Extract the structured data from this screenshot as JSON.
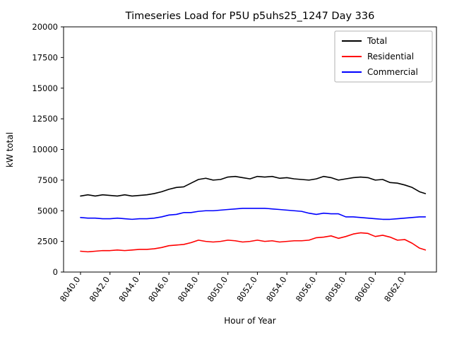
{
  "chart_data": {
    "type": "line",
    "title": "Timeseries Load for P5U p5uhs25_1247  Day 336",
    "xlabel": "Hour of Year",
    "ylabel": "kW total",
    "xlim": [
      8038.85,
      8064.15
    ],
    "ylim": [
      0,
      20000
    ],
    "yticks": [
      0,
      2500,
      5000,
      7500,
      10000,
      12500,
      15000,
      17500,
      20000
    ],
    "ytick_labels": [
      "0",
      "2500",
      "5000",
      "7500",
      "10000",
      "12500",
      "15000",
      "17500",
      "20000"
    ],
    "xticks": [
      8040,
      8042,
      8044,
      8046,
      8048,
      8050,
      8052,
      8054,
      8056,
      8058,
      8060,
      8062
    ],
    "xtick_labels": [
      "8040.0",
      "8042.0",
      "8044.0",
      "8046.0",
      "8048.0",
      "8050.0",
      "8052.0",
      "8054.0",
      "8056.0",
      "8058.0",
      "8060.0",
      "8062.0"
    ],
    "x": [
      8040,
      8040.5,
      8041,
      8041.5,
      8042,
      8042.5,
      8043,
      8043.5,
      8044,
      8044.5,
      8045,
      8045.5,
      8046,
      8046.5,
      8047,
      8047.5,
      8048,
      8048.5,
      8049,
      8049.5,
      8050,
      8050.5,
      8051,
      8051.5,
      8052,
      8052.5,
      8053,
      8053.5,
      8054,
      8054.5,
      8055,
      8055.5,
      8056,
      8056.5,
      8057,
      8057.5,
      8058,
      8058.5,
      8059,
      8059.5,
      8060,
      8060.5,
      8061,
      8061.5,
      8062,
      8062.5,
      8063,
      8063.4
    ],
    "series": [
      {
        "name": "Total",
        "color": "#000000",
        "values": [
          6200,
          6300,
          6200,
          6300,
          6250,
          6200,
          6300,
          6200,
          6250,
          6300,
          6400,
          6550,
          6750,
          6900,
          6950,
          7250,
          7550,
          7650,
          7500,
          7550,
          7750,
          7800,
          7700,
          7600,
          7800,
          7750,
          7800,
          7650,
          7700,
          7600,
          7550,
          7500,
          7600,
          7800,
          7700,
          7500,
          7600,
          7700,
          7750,
          7700,
          7500,
          7550,
          7300,
          7250,
          7100,
          6900,
          6550,
          6400
        ]
      },
      {
        "name": "Residential",
        "color": "#ff0000",
        "values": [
          1700,
          1650,
          1700,
          1750,
          1750,
          1800,
          1750,
          1800,
          1850,
          1850,
          1900,
          2000,
          2150,
          2200,
          2250,
          2400,
          2600,
          2500,
          2450,
          2500,
          2600,
          2550,
          2450,
          2500,
          2600,
          2500,
          2550,
          2450,
          2500,
          2550,
          2550,
          2600,
          2800,
          2850,
          2950,
          2750,
          2900,
          3100,
          3200,
          3150,
          2900,
          3000,
          2850,
          2600,
          2650,
          2350,
          1950,
          1800
        ]
      },
      {
        "name": "Commercial",
        "color": "#0000ff",
        "values": [
          4450,
          4400,
          4400,
          4350,
          4350,
          4400,
          4350,
          4300,
          4350,
          4350,
          4400,
          4500,
          4650,
          4700,
          4850,
          4850,
          4950,
          5000,
          5000,
          5050,
          5100,
          5150,
          5200,
          5200,
          5200,
          5200,
          5150,
          5100,
          5050,
          5000,
          4950,
          4800,
          4700,
          4800,
          4750,
          4750,
          4500,
          4500,
          4450,
          4400,
          4350,
          4300,
          4300,
          4350,
          4400,
          4450,
          4500,
          4500
        ]
      }
    ],
    "legend_position": "upper right",
    "grid": false,
    "background_color": "#ffffff"
  }
}
